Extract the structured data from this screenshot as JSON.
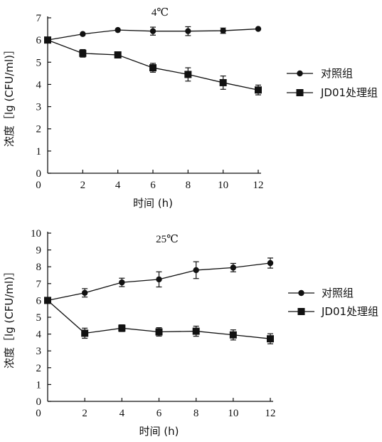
{
  "chart_data": [
    {
      "type": "line",
      "title": "4℃",
      "xlabel": "时间 (h)",
      "ylabel": "浓度［lg (CFU/ml)］",
      "xlim": [
        0,
        12
      ],
      "ylim": [
        0,
        7
      ],
      "xticks": [
        0,
        2,
        4,
        6,
        8,
        10,
        12
      ],
      "yticks": [
        0,
        1,
        2,
        3,
        4,
        5,
        6,
        7
      ],
      "legend_position": "right",
      "series": [
        {
          "name": "对照组",
          "marker": "circle",
          "x": [
            0,
            2,
            4,
            6,
            8,
            10,
            12
          ],
          "values": [
            6.0,
            6.27,
            6.45,
            6.4,
            6.4,
            6.42,
            6.5
          ],
          "error": [
            0,
            0,
            0,
            0.18,
            0.2,
            0.12,
            0
          ]
        },
        {
          "name": "JD01处理组",
          "marker": "square",
          "x": [
            0,
            2,
            4,
            6,
            8,
            10,
            12
          ],
          "values": [
            6.0,
            5.4,
            5.33,
            4.75,
            4.45,
            4.08,
            3.75
          ],
          "error": [
            0,
            0.17,
            0.12,
            0.2,
            0.3,
            0.3,
            0.22
          ]
        }
      ]
    },
    {
      "type": "line",
      "title": "25℃",
      "xlabel": "时间 (h)",
      "ylabel": "浓度［lg (CFU/ml)］",
      "xlim": [
        0,
        12
      ],
      "ylim": [
        0,
        10
      ],
      "xticks": [
        0,
        2,
        4,
        6,
        8,
        10,
        12
      ],
      "yticks": [
        0,
        1,
        2,
        3,
        4,
        5,
        6,
        7,
        8,
        9,
        10
      ],
      "legend_position": "right",
      "series": [
        {
          "name": "对照组",
          "marker": "circle",
          "x": [
            0,
            2,
            4,
            6,
            8,
            10,
            12
          ],
          "values": [
            6.0,
            6.45,
            7.07,
            7.25,
            7.8,
            7.95,
            8.22
          ],
          "error": [
            0,
            0.25,
            0.25,
            0.45,
            0.5,
            0.25,
            0.3
          ]
        },
        {
          "name": "JD01处理组",
          "marker": "square",
          "x": [
            0,
            2,
            4,
            6,
            8,
            10,
            12
          ],
          "values": [
            6.0,
            4.05,
            4.35,
            4.13,
            4.17,
            3.95,
            3.72
          ],
          "error": [
            0,
            0.3,
            0.2,
            0.25,
            0.3,
            0.3,
            0.3
          ]
        }
      ]
    }
  ]
}
